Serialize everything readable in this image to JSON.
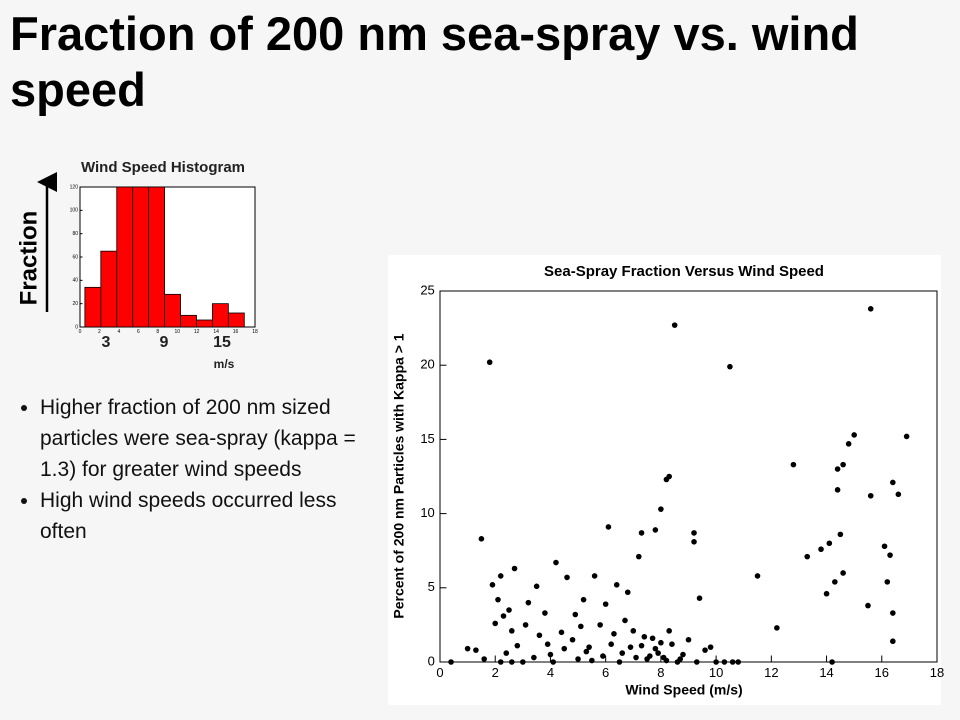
{
  "title": "Fraction of 200 nm sea-spray vs. wind speed",
  "bullets": [
    "Higher fraction of 200 nm sized particles were sea-spray (kappa = 1.3) for greater wind speeds",
    "High wind speeds occurred less often"
  ],
  "chart_data": [
    {
      "type": "histogram",
      "title": "Wind Speed Histogram",
      "y_label": "Fraction",
      "annotations": [
        "3",
        "9",
        "15",
        "m/s"
      ],
      "bins": [
        0.5,
        2.14,
        3.78,
        5.42,
        7.06,
        8.7,
        10.34,
        11.98,
        13.62,
        15.26,
        16.9
      ],
      "values": [
        34,
        65,
        120,
        120,
        120,
        28,
        10,
        6,
        20,
        12
      ],
      "color": "#ff0000",
      "xlim": [
        0,
        18
      ],
      "xticks": [
        0,
        2,
        4,
        6,
        8,
        10,
        12,
        14,
        16,
        18
      ],
      "ylim": [
        0,
        120
      ],
      "yticks": [
        0,
        20,
        40,
        60,
        80,
        100,
        120
      ]
    },
    {
      "type": "scatter",
      "title": "Sea-Spray Fraction Versus Wind Speed",
      "x_label": "Wind Speed (m/s)",
      "y_label": "Percent of 200 nm Particles with Kappa > 1",
      "color": "#000000",
      "x": [
        1.8,
        8.5,
        10.5,
        15.6,
        1.5,
        6.1,
        7.3,
        7.8,
        8.2,
        8.3,
        8.0,
        9.2,
        9.2,
        11.5,
        12.2,
        12.8,
        13.3,
        13.8,
        14.0,
        14.1,
        14.3,
        14.4,
        14.6,
        14.8,
        15.0,
        14.4,
        14.5,
        14.6,
        15.5,
        15.6,
        16.1,
        16.3,
        16.4,
        16.6,
        16.4,
        16.4,
        16.9,
        16.2,
        14.2,
        9.4,
        10.0,
        10.3,
        10.6,
        10.8,
        0.4,
        1.0,
        1.3,
        1.6,
        2.0,
        2.1,
        2.2,
        1.9,
        2.3,
        2.5,
        2.7,
        2.6,
        2.8,
        3.0,
        3.2,
        3.5,
        3.6,
        3.8,
        4.0,
        4.2,
        4.4,
        4.6,
        4.8,
        5.0,
        5.2,
        5.4,
        5.6,
        5.8,
        6.0,
        6.2,
        6.4,
        6.6,
        6.8,
        7.0,
        7.2,
        7.4,
        7.6,
        7.8,
        8.0,
        8.1,
        8.3,
        8.6,
        8.8,
        9.0,
        9.3,
        9.6,
        9.8,
        2.2,
        2.6,
        3.4,
        4.5,
        5.5,
        6.5,
        7.5,
        7.9,
        8.2,
        3.9,
        5.1,
        6.3,
        4.1,
        5.9,
        6.9,
        7.7,
        7.1,
        2.4,
        3.1,
        4.9,
        5.3,
        6.7,
        7.3,
        8.4,
        8.7
      ],
      "values": [
        20.2,
        22.7,
        19.9,
        23.8,
        8.3,
        9.1,
        8.7,
        8.9,
        12.3,
        12.5,
        10.3,
        8.7,
        8.1,
        5.8,
        2.3,
        13.3,
        7.1,
        7.6,
        4.6,
        8.0,
        5.4,
        13.0,
        13.3,
        14.7,
        15.3,
        11.6,
        8.6,
        6.0,
        3.8,
        11.2,
        7.8,
        7.2,
        12.1,
        11.3,
        3.3,
        1.4,
        15.2,
        5.4,
        0,
        4.3,
        0,
        0,
        0,
        0,
        0,
        0.9,
        0.8,
        0.2,
        2.6,
        4.2,
        5.8,
        5.2,
        3.1,
        3.5,
        6.3,
        2.1,
        1.1,
        0,
        4.0,
        5.1,
        1.8,
        3.3,
        0.5,
        6.7,
        2.0,
        5.7,
        1.5,
        0.2,
        4.2,
        1.0,
        5.8,
        2.5,
        3.9,
        1.2,
        5.2,
        0.6,
        4.7,
        2.1,
        7.1,
        1.7,
        0.4,
        0.9,
        1.3,
        0.3,
        2.1,
        0,
        0.5,
        1.5,
        0,
        0.8,
        1.0,
        0,
        0,
        0.3,
        0.9,
        0.1,
        0.0,
        0.2,
        0.6,
        0.1,
        1.2,
        2.4,
        1.9,
        0.0,
        0.4,
        1.0,
        1.6,
        0.3,
        0.6,
        2.5,
        3.2,
        0.7,
        2.8,
        1.1,
        1.2,
        0.2
      ],
      "xlim": [
        0,
        18
      ],
      "xticks": [
        0,
        2,
        4,
        6,
        8,
        10,
        12,
        14,
        16,
        18
      ],
      "ylim": [
        0,
        25
      ],
      "yticks": [
        0,
        5,
        10,
        15,
        20,
        25
      ]
    }
  ]
}
